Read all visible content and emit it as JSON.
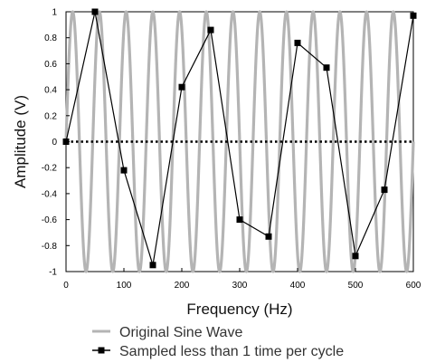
{
  "chart_data": {
    "type": "line",
    "xlabel": "Frequency (Hz)",
    "ylabel": "Amplitude (V)",
    "xlim": [
      0,
      600
    ],
    "ylim": [
      -1,
      1
    ],
    "x_ticks": [
      "0",
      "100",
      "200",
      "300",
      "400",
      "500",
      "600"
    ],
    "y_ticks": [
      "1",
      "0.8",
      "0.6",
      "0.4",
      "0.2",
      "0",
      "-0.2",
      "-0.4",
      "-0.6",
      "-0.8",
      "-1"
    ],
    "grid": false,
    "legend_position": "bottom",
    "series": [
      {
        "name": "Original Sine Wave",
        "kind": "continuous sine",
        "cycles_per_600": 13,
        "color": "#b4b4b4"
      },
      {
        "name": "Sampled less than 1 time per cycle",
        "kind": "sampled",
        "marker": "square",
        "color": "#000000",
        "x": [
          0,
          50,
          100,
          150,
          200,
          250,
          300,
          350,
          400,
          450,
          500,
          550,
          600
        ],
        "y": [
          0,
          1.0,
          -0.22,
          -0.95,
          0.42,
          0.86,
          -0.6,
          -0.73,
          0.76,
          0.57,
          -0.88,
          -0.37,
          0.97
        ]
      }
    ],
    "reference_line": {
      "y": 0,
      "style": "dotted",
      "color": "#000000"
    },
    "colors": {
      "plot_background": "#ffffff",
      "sine": "#b4b4b4",
      "sampled": "#000000"
    }
  }
}
